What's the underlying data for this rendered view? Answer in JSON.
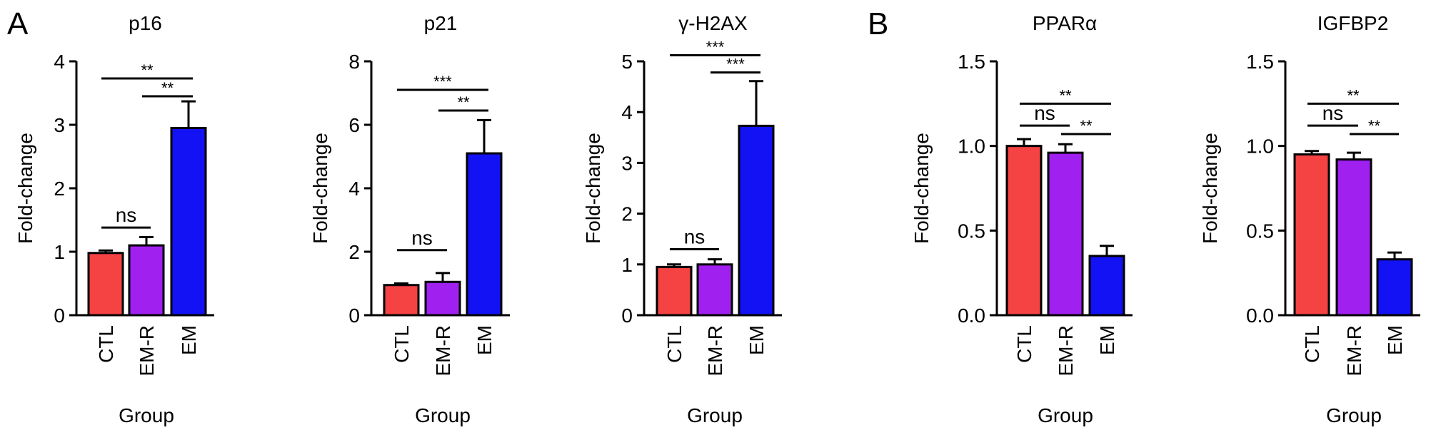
{
  "panel_labels": [
    "A",
    "B"
  ],
  "chart_data": [
    {
      "type": "bar",
      "title": "p16",
      "xlabel": "Group",
      "ylabel": "Fold-change",
      "categories": [
        "CTL",
        "EM-R",
        "EM"
      ],
      "values": [
        0.98,
        1.1,
        2.95
      ],
      "errors": [
        0.04,
        0.13,
        0.42
      ],
      "colors": [
        "#f54242",
        "#a020f0",
        "#1212f5"
      ],
      "ylim": [
        0,
        4
      ],
      "yticks": [
        "0",
        "1",
        "2",
        "3",
        "4"
      ],
      "significance": [
        {
          "from": 0,
          "to": 1,
          "label": "ns",
          "y": 1.38
        },
        {
          "from": 0,
          "to": 2,
          "label": "**",
          "y": 3.73
        },
        {
          "from": 1,
          "to": 2,
          "label": "**",
          "y": 3.45
        }
      ]
    },
    {
      "type": "bar",
      "title": "p21",
      "xlabel": "Group",
      "ylabel": "Fold-change",
      "categories": [
        "CTL",
        "EM-R",
        "EM"
      ],
      "values": [
        0.95,
        1.05,
        5.1
      ],
      "errors": [
        0.05,
        0.28,
        1.05
      ],
      "colors": [
        "#f54242",
        "#a020f0",
        "#1212f5"
      ],
      "ylim": [
        0,
        8
      ],
      "yticks": [
        "0",
        "2",
        "4",
        "6",
        "8"
      ],
      "significance": [
        {
          "from": 0,
          "to": 1,
          "label": "ns",
          "y": 2.05
        },
        {
          "from": 0,
          "to": 2,
          "label": "***",
          "y": 7.1
        },
        {
          "from": 1,
          "to": 2,
          "label": "**",
          "y": 6.45
        }
      ]
    },
    {
      "type": "bar",
      "title": "γ-H2AX",
      "xlabel": "Group",
      "ylabel": "Fold-change",
      "categories": [
        "CTL",
        "EM-R",
        "EM"
      ],
      "values": [
        0.95,
        1.0,
        3.73
      ],
      "errors": [
        0.05,
        0.1,
        0.88
      ],
      "colors": [
        "#f54242",
        "#a020f0",
        "#1212f5"
      ],
      "ylim": [
        0,
        5
      ],
      "yticks": [
        "0",
        "1",
        "2",
        "3",
        "4",
        "5"
      ],
      "significance": [
        {
          "from": 0,
          "to": 1,
          "label": "ns",
          "y": 1.3
        },
        {
          "from": 0,
          "to": 2,
          "label": "***",
          "y": 5.12
        },
        {
          "from": 1,
          "to": 2,
          "label": "***",
          "y": 4.78
        }
      ]
    },
    {
      "type": "bar",
      "title": "PPARα",
      "xlabel": "Group",
      "ylabel": "Fold-change",
      "categories": [
        "CTL",
        "EM-R",
        "EM"
      ],
      "values": [
        1.0,
        0.96,
        0.35
      ],
      "errors": [
        0.04,
        0.05,
        0.06
      ],
      "colors": [
        "#f54242",
        "#a020f0",
        "#1212f5"
      ],
      "ylim": [
        0,
        1.5
      ],
      "yticks": [
        "0.0",
        "0.5",
        "1.0",
        "1.5"
      ],
      "significance": [
        {
          "from": 0,
          "to": 1,
          "label": "ns",
          "y": 1.12
        },
        {
          "from": 0,
          "to": 2,
          "label": "**",
          "y": 1.25
        },
        {
          "from": 1,
          "to": 2,
          "label": "**",
          "y": 1.07
        }
      ]
    },
    {
      "type": "bar",
      "title": "IGFBP2",
      "xlabel": "Group",
      "ylabel": "Fold-change",
      "categories": [
        "CTL",
        "EM-R",
        "EM"
      ],
      "values": [
        0.95,
        0.92,
        0.33
      ],
      "errors": [
        0.02,
        0.04,
        0.04
      ],
      "colors": [
        "#f54242",
        "#a020f0",
        "#1212f5"
      ],
      "ylim": [
        0,
        1.5
      ],
      "yticks": [
        "0.0",
        "0.5",
        "1.0",
        "1.5"
      ],
      "significance": [
        {
          "from": 0,
          "to": 1,
          "label": "ns",
          "y": 1.12
        },
        {
          "from": 0,
          "to": 2,
          "label": "**",
          "y": 1.25
        },
        {
          "from": 1,
          "to": 2,
          "label": "**",
          "y": 1.07
        }
      ]
    }
  ]
}
